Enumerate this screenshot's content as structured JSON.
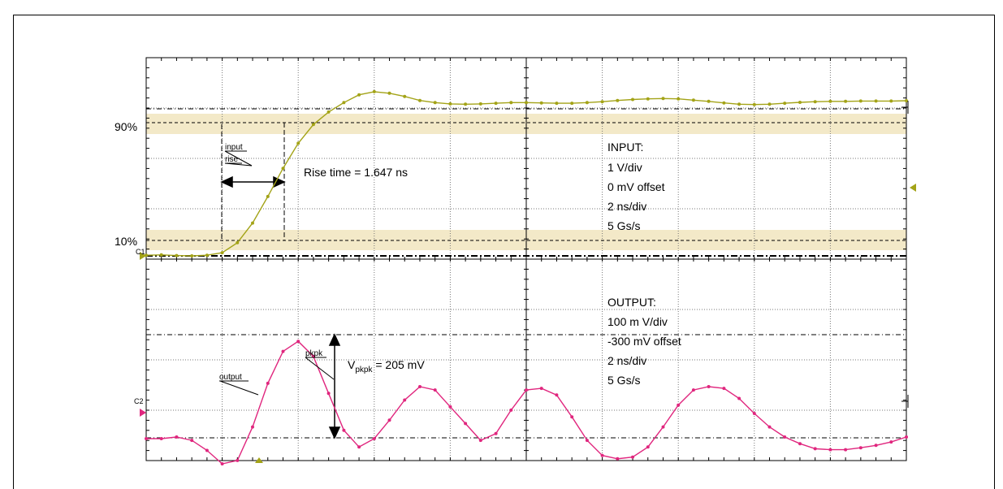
{
  "chart_data": {
    "type": "line",
    "title": "",
    "xlabel": "",
    "ylabel": "",
    "x_unit_per_division": "2 ns/div",
    "grid": true,
    "series": [
      {
        "color": "#a3a317",
        "x": [
          0,
          0.2,
          0.4,
          0.6,
          0.8,
          1.0,
          1.2,
          1.4,
          1.6,
          1.8,
          2.0,
          2.2,
          2.4,
          2.6,
          2.8,
          3.0,
          3.2,
          3.4,
          3.6,
          3.8,
          4.0,
          4.2,
          4.4,
          4.6,
          4.8,
          5.0,
          5.2,
          5.4,
          5.6,
          5.8,
          6.0,
          6.2,
          6.4,
          6.6,
          6.8,
          7.0,
          7.2,
          7.4,
          7.6,
          7.8,
          8.0,
          8.2,
          8.4,
          8.6,
          8.8,
          9.0,
          9.2,
          9.4,
          9.6,
          9.8,
          10.0
        ],
        "y": [
          0.02,
          0.03,
          0.01,
          0.0,
          0.02,
          0.1,
          0.42,
          1.05,
          1.9,
          2.8,
          3.6,
          4.2,
          4.6,
          4.9,
          5.15,
          5.25,
          5.2,
          5.1,
          4.97,
          4.9,
          4.86,
          4.85,
          4.86,
          4.88,
          4.9,
          4.9,
          4.89,
          4.88,
          4.88,
          4.9,
          4.93,
          4.97,
          5.0,
          5.02,
          5.03,
          5.02,
          4.98,
          4.94,
          4.89,
          4.85,
          4.84,
          4.85,
          4.88,
          4.91,
          4.93,
          4.94,
          4.94,
          4.95,
          4.95,
          4.95,
          4.96
        ]
      },
      {
        "color": "#e0267e",
        "x": [
          0,
          0.2,
          0.4,
          0.6,
          0.8,
          1.0,
          1.2,
          1.4,
          1.6,
          1.8,
          2.0,
          2.2,
          2.4,
          2.6,
          2.8,
          3.0,
          3.2,
          3.4,
          3.6,
          3.8,
          4.0,
          4.2,
          4.4,
          4.6,
          4.8,
          5.0,
          5.2,
          5.4,
          5.6,
          5.8,
          6.0,
          6.2,
          6.4,
          6.6,
          6.8,
          7.0,
          7.2,
          7.4,
          7.6,
          7.8,
          8.0,
          8.2,
          8.4,
          8.6,
          8.8,
          9.0,
          9.2,
          9.4,
          9.6,
          9.8,
          10.0
        ],
        "y": [
          -1.55,
          -1.55,
          -1.5,
          -1.6,
          -1.9,
          -2.3,
          -2.2,
          -1.2,
          0.1,
          1.05,
          1.35,
          0.9,
          -0.2,
          -1.3,
          -1.8,
          -1.55,
          -1.0,
          -0.4,
          0.0,
          -0.1,
          -0.6,
          -1.1,
          -1.6,
          -1.4,
          -0.7,
          -0.1,
          -0.05,
          -0.25,
          -0.9,
          -1.6,
          -2.05,
          -2.15,
          -2.1,
          -1.8,
          -1.2,
          -0.55,
          -0.1,
          0.0,
          -0.05,
          -0.35,
          -0.8,
          -1.2,
          -1.5,
          -1.7,
          -1.85,
          -1.88,
          -1.88,
          -1.82,
          -1.75,
          -1.65,
          -1.5
        ]
      }
    ]
  },
  "labels": {
    "c1": "C1",
    "c2": "C2",
    "pct90": "90%",
    "pct10": "10%",
    "input_tag": "input",
    "rise_tag": "rise",
    "rise_text": "Rise time = 1.647 ns",
    "output_tag": "output",
    "pkpk_tag": "pkpk",
    "vpkpk_v": "V",
    "vpkpk_sub": "pkpk",
    "vpkpk_val": " = 205 mV"
  },
  "input_settings": [
    "INPUT:",
    "1 V/div",
    "0 mV offset",
    "2 ns/div",
    "5 Gs/s"
  ],
  "output_settings": [
    "OUTPUT:",
    "100 m V/div",
    "-300 mV offset",
    "2 ns/div",
    "5 Gs/s"
  ],
  "colors": {
    "ch1": "#a3a317",
    "ch2": "#e0267e",
    "band": "#f3e9c8",
    "grid": "#777777"
  }
}
